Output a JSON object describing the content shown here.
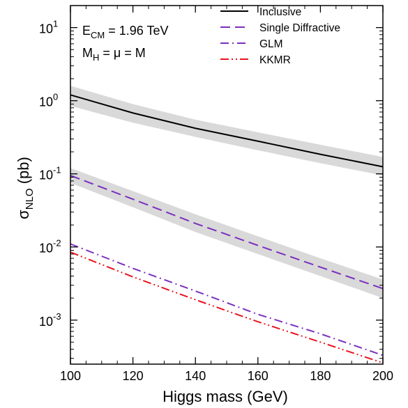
{
  "chart_data": {
    "type": "line",
    "xlabel": "Higgs mass (GeV)",
    "ylabel_main": "σ",
    "ylabel_sub": "NLO",
    "ylabel_unit": "(pb)",
    "xlim": [
      100,
      200
    ],
    "ylim": [
      0.00025,
      20
    ],
    "yscale": "log",
    "x_ticks": [
      100,
      120,
      140,
      160,
      180,
      200
    ],
    "x_tick_labels": [
      "100",
      "120",
      "140",
      "160",
      "180",
      "200"
    ],
    "y_ticks": [
      {
        "value": 10,
        "base": "10",
        "exp": "1"
      },
      {
        "value": 1,
        "base": "10",
        "exp": "0"
      },
      {
        "value": 0.1,
        "base": "10",
        "exp": "-1"
      },
      {
        "value": 0.01,
        "base": "10",
        "exp": "-2"
      },
      {
        "value": 0.001,
        "base": "10",
        "exp": "-3"
      }
    ],
    "annotations": [
      {
        "main": "E",
        "sub": "CM",
        "rest": " = 1.96 TeV"
      },
      {
        "main": "M",
        "sub": "H",
        "rest": " = μ = M"
      }
    ],
    "legend_position": "top-right",
    "series": [
      {
        "name": "Inclusive",
        "color": "#000000",
        "dash": "solid",
        "x": [
          100,
          120,
          140,
          160,
          180,
          200
        ],
        "y": [
          1.2,
          0.68,
          0.42,
          0.28,
          0.185,
          0.125
        ],
        "band_low": [
          0.85,
          0.5,
          0.32,
          0.21,
          0.14,
          0.095
        ],
        "band_high": [
          1.6,
          0.9,
          0.55,
          0.37,
          0.25,
          0.17
        ]
      },
      {
        "name": "Single Diffractive",
        "color": "#7B2FBE",
        "dash": "dashed",
        "x": [
          100,
          120,
          140,
          160,
          180,
          200
        ],
        "y": [
          0.095,
          0.045,
          0.021,
          0.0105,
          0.0053,
          0.0027
        ],
        "band_low": [
          0.075,
          0.035,
          0.016,
          0.008,
          0.004,
          0.002
        ],
        "band_high": [
          0.12,
          0.058,
          0.028,
          0.014,
          0.007,
          0.0036
        ]
      },
      {
        "name": "GLM",
        "color": "#7B2FBE",
        "dash": "dashdot",
        "x": [
          100,
          120,
          140,
          160,
          180,
          200
        ],
        "y": [
          0.011,
          0.0051,
          0.0025,
          0.0012,
          0.00065,
          0.00033
        ]
      },
      {
        "name": "KKMR",
        "color": "#E8141E",
        "dash": "dashdotdot",
        "x": [
          100,
          120,
          140,
          160,
          180,
          200
        ],
        "y": [
          0.0085,
          0.0039,
          0.0019,
          0.00095,
          0.0005,
          0.00026
        ]
      }
    ]
  }
}
